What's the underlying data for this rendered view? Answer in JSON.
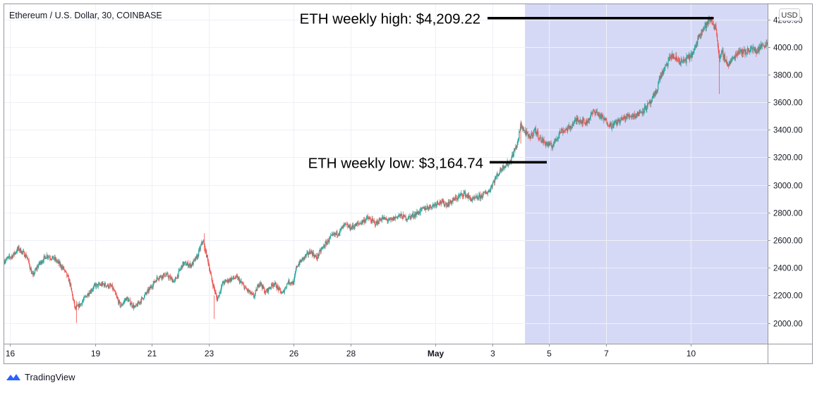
{
  "chart_data": {
    "type": "candlestick",
    "title": "Ethereum / U.S. Dollar, 30, COINBASE",
    "symbol": "ETH/USD",
    "interval": "30",
    "exchange": "COINBASE",
    "currency_label": "USD",
    "ylim": [
      1850,
      4310
    ],
    "y_ticks": [
      2000,
      2200,
      2400,
      2600,
      2800,
      3000,
      3200,
      3400,
      3600,
      3800,
      4000,
      4200
    ],
    "y_tick_labels": [
      "2000.00",
      "2200.00",
      "2400.00",
      "2600.00",
      "2800.00",
      "3000.00",
      "3200.00",
      "3400.00",
      "3600.00",
      "3800.00",
      "4000.00",
      "4200.00"
    ],
    "x_range_days": [
      15.8,
      42.7
    ],
    "x_ticks": [
      {
        "day": 16,
        "label": "16"
      },
      {
        "day": 19,
        "label": "19"
      },
      {
        "day": 21,
        "label": "21"
      },
      {
        "day": 23,
        "label": "23"
      },
      {
        "day": 26,
        "label": "26"
      },
      {
        "day": 28,
        "label": "28"
      },
      {
        "day": 31,
        "label": "May"
      },
      {
        "day": 33,
        "label": "3"
      },
      {
        "day": 35,
        "label": "5"
      },
      {
        "day": 37,
        "label": "7"
      },
      {
        "day": 40,
        "label": "10"
      }
    ],
    "price_path": [
      [
        15.8,
        2450
      ],
      [
        16.1,
        2490
      ],
      [
        16.3,
        2540
      ],
      [
        16.6,
        2480
      ],
      [
        16.8,
        2340
      ],
      [
        17.0,
        2420
      ],
      [
        17.3,
        2490
      ],
      [
        17.6,
        2460
      ],
      [
        17.9,
        2390
      ],
      [
        18.1,
        2300
      ],
      [
        18.3,
        2100
      ],
      [
        18.5,
        2140
      ],
      [
        18.7,
        2200
      ],
      [
        19.0,
        2270
      ],
      [
        19.3,
        2280
      ],
      [
        19.6,
        2260
      ],
      [
        19.9,
        2120
      ],
      [
        20.1,
        2180
      ],
      [
        20.4,
        2110
      ],
      [
        20.6,
        2160
      ],
      [
        20.9,
        2240
      ],
      [
        21.2,
        2330
      ],
      [
        21.5,
        2350
      ],
      [
        21.8,
        2300
      ],
      [
        22.1,
        2430
      ],
      [
        22.4,
        2420
      ],
      [
        22.6,
        2480
      ],
      [
        22.8,
        2600
      ],
      [
        23.0,
        2430
      ],
      [
        23.1,
        2320
      ],
      [
        23.3,
        2170
      ],
      [
        23.5,
        2290
      ],
      [
        23.8,
        2320
      ],
      [
        24.0,
        2330
      ],
      [
        24.3,
        2250
      ],
      [
        24.6,
        2190
      ],
      [
        24.8,
        2300
      ],
      [
        25.0,
        2220
      ],
      [
        25.3,
        2290
      ],
      [
        25.6,
        2210
      ],
      [
        25.8,
        2300
      ],
      [
        26.0,
        2290
      ],
      [
        26.1,
        2410
      ],
      [
        26.3,
        2460
      ],
      [
        26.6,
        2520
      ],
      [
        26.8,
        2470
      ],
      [
        27.0,
        2540
      ],
      [
        27.3,
        2620
      ],
      [
        27.6,
        2660
      ],
      [
        27.8,
        2710
      ],
      [
        28.0,
        2690
      ],
      [
        28.3,
        2720
      ],
      [
        28.6,
        2760
      ],
      [
        28.9,
        2720
      ],
      [
        29.1,
        2760
      ],
      [
        29.4,
        2740
      ],
      [
        29.7,
        2780
      ],
      [
        30.0,
        2760
      ],
      [
        30.3,
        2790
      ],
      [
        30.6,
        2830
      ],
      [
        30.9,
        2850
      ],
      [
        31.1,
        2880
      ],
      [
        31.4,
        2860
      ],
      [
        31.7,
        2900
      ],
      [
        32.0,
        2940
      ],
      [
        32.3,
        2890
      ],
      [
        32.6,
        2920
      ],
      [
        32.9,
        2960
      ],
      [
        33.0,
        3010
      ],
      [
        33.2,
        3080
      ],
      [
        33.4,
        3140
      ],
      [
        33.6,
        3160
      ],
      [
        33.8,
        3260
      ],
      [
        33.9,
        3310
      ],
      [
        34.0,
        3440
      ],
      [
        34.1,
        3400
      ],
      [
        34.3,
        3340
      ],
      [
        34.5,
        3400
      ],
      [
        34.7,
        3330
      ],
      [
        34.9,
        3300
      ],
      [
        35.1,
        3280
      ],
      [
        35.4,
        3390
      ],
      [
        35.7,
        3410
      ],
      [
        36.0,
        3480
      ],
      [
        36.3,
        3450
      ],
      [
        36.6,
        3540
      ],
      [
        36.9,
        3480
      ],
      [
        37.2,
        3430
      ],
      [
        37.5,
        3470
      ],
      [
        37.8,
        3500
      ],
      [
        38.1,
        3510
      ],
      [
        38.4,
        3560
      ],
      [
        38.6,
        3600
      ],
      [
        38.8,
        3690
      ],
      [
        38.9,
        3780
      ],
      [
        39.1,
        3850
      ],
      [
        39.3,
        3940
      ],
      [
        39.5,
        3910
      ],
      [
        39.7,
        3890
      ],
      [
        39.9,
        3920
      ],
      [
        40.1,
        3960
      ],
      [
        40.3,
        4100
      ],
      [
        40.5,
        4150
      ],
      [
        40.7,
        4200
      ],
      [
        40.9,
        4120
      ],
      [
        41.0,
        3900
      ],
      [
        41.1,
        3960
      ],
      [
        41.3,
        3870
      ],
      [
        41.5,
        3920
      ],
      [
        41.7,
        3980
      ],
      [
        41.9,
        3960
      ],
      [
        42.1,
        3990
      ],
      [
        42.3,
        3970
      ],
      [
        42.5,
        4010
      ],
      [
        42.7,
        4030
      ]
    ],
    "highlight_region_days": [
      34.15,
      42.7
    ],
    "annotations": [
      {
        "text": "ETH weekly high: $4,209.22",
        "price": 4209.22,
        "day": 40.75
      },
      {
        "text": "ETH weekly low: $3,164.74",
        "price": 3164.74,
        "day": 34.15
      }
    ]
  },
  "colors": {
    "up": "#26a69a",
    "down": "#ef5350",
    "highlight": "#d6d9f6",
    "grid": "#eef0f6",
    "axis_text": "#131722"
  },
  "footer": {
    "brand": "TradingView"
  }
}
